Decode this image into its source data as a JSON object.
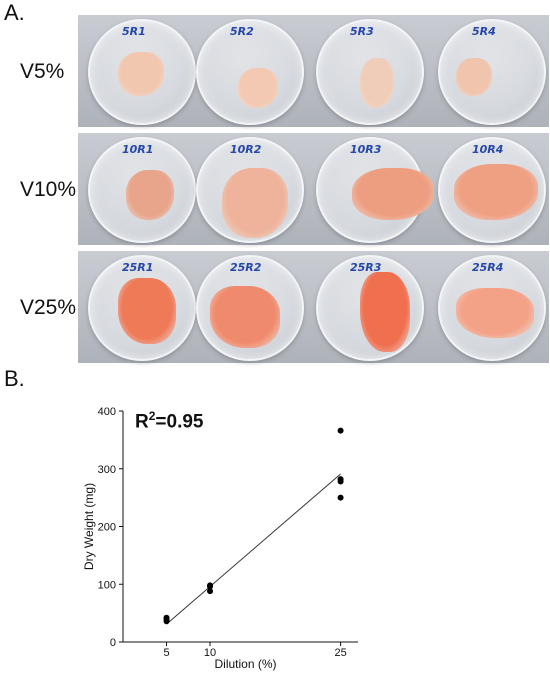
{
  "panel_a": {
    "label": "A.",
    "rows": [
      {
        "label": "V5%",
        "dishes": [
          "5R1",
          "5R2",
          "5R3",
          "5R4"
        ]
      },
      {
        "label": "V10%",
        "dishes": [
          "10R1",
          "10R2",
          "10R3",
          "10R4"
        ]
      },
      {
        "label": "V25%",
        "dishes": [
          "25R1",
          "25R2",
          "25R3",
          "25R4"
        ]
      }
    ]
  },
  "panel_b": {
    "label": "B.",
    "r2_prefix": "R",
    "r2_sup": "2",
    "r2_value": "=0.95"
  },
  "chart_data": {
    "type": "scatter",
    "xlabel": "Dilution (%)",
    "ylabel": "Dry Weight (mg)",
    "x_ticks": [
      5,
      10,
      25
    ],
    "y_ticks": [
      0,
      100,
      200,
      300,
      400
    ],
    "xlim": [
      0,
      27
    ],
    "ylim": [
      0,
      400
    ],
    "points": [
      {
        "x": 5,
        "y": 36
      },
      {
        "x": 5,
        "y": 39
      },
      {
        "x": 5,
        "y": 42
      },
      {
        "x": 10,
        "y": 88
      },
      {
        "x": 10,
        "y": 96
      },
      {
        "x": 10,
        "y": 98
      },
      {
        "x": 25,
        "y": 250
      },
      {
        "x": 25,
        "y": 278
      },
      {
        "x": 25,
        "y": 282
      },
      {
        "x": 25,
        "y": 366
      }
    ],
    "fit_line": {
      "x_start": 5,
      "y_start": 31,
      "x_end": 25,
      "y_end": 291
    }
  }
}
